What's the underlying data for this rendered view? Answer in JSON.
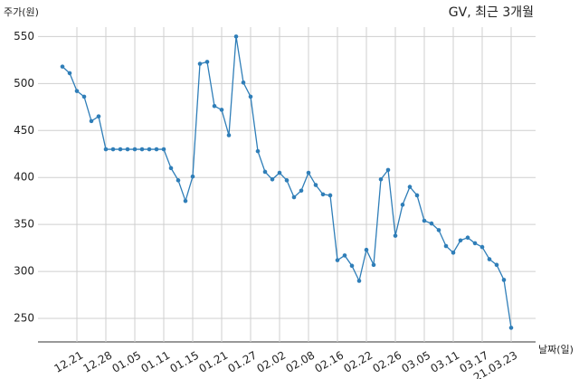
{
  "chart_data": {
    "type": "line",
    "title": "GV, 최근 3개월",
    "y_label": "주가(원)",
    "x_label": "날짜(일)",
    "categories": [
      null,
      null,
      "12.21",
      null,
      null,
      null,
      "12.28",
      null,
      null,
      null,
      "01.05",
      null,
      null,
      null,
      "01.11",
      null,
      null,
      null,
      "01.15",
      null,
      null,
      null,
      "01.21",
      null,
      null,
      null,
      "01.27",
      null,
      null,
      null,
      "02.02",
      null,
      null,
      null,
      "02.08",
      null,
      null,
      null,
      "02.16",
      null,
      null,
      null,
      "02.22",
      null,
      null,
      null,
      "02.26",
      null,
      null,
      null,
      "03.05",
      null,
      null,
      null,
      "03.11",
      null,
      null,
      null,
      "03.17",
      null,
      null,
      null,
      "21.03.23"
    ],
    "series": [
      {
        "name": "GV",
        "color": "#2f7eb8",
        "values": [
          518,
          511,
          492,
          486,
          460,
          465,
          430,
          430,
          430,
          430,
          430,
          430,
          430,
          430,
          430,
          410,
          397,
          375,
          401,
          521,
          523,
          476,
          472,
          445,
          550,
          501,
          486,
          428,
          406,
          398,
          405,
          397,
          379,
          386,
          405,
          392,
          382,
          381,
          312,
          317,
          306,
          290,
          323,
          307,
          398,
          408,
          338,
          371,
          390,
          381,
          354,
          351,
          344,
          327,
          320,
          333,
          336,
          330,
          326,
          313,
          307,
          291,
          240
        ]
      }
    ],
    "ylim": [
      225,
      560
    ],
    "yticks": [
      250,
      300,
      350,
      400,
      450,
      500,
      550
    ],
    "grid": true
  }
}
